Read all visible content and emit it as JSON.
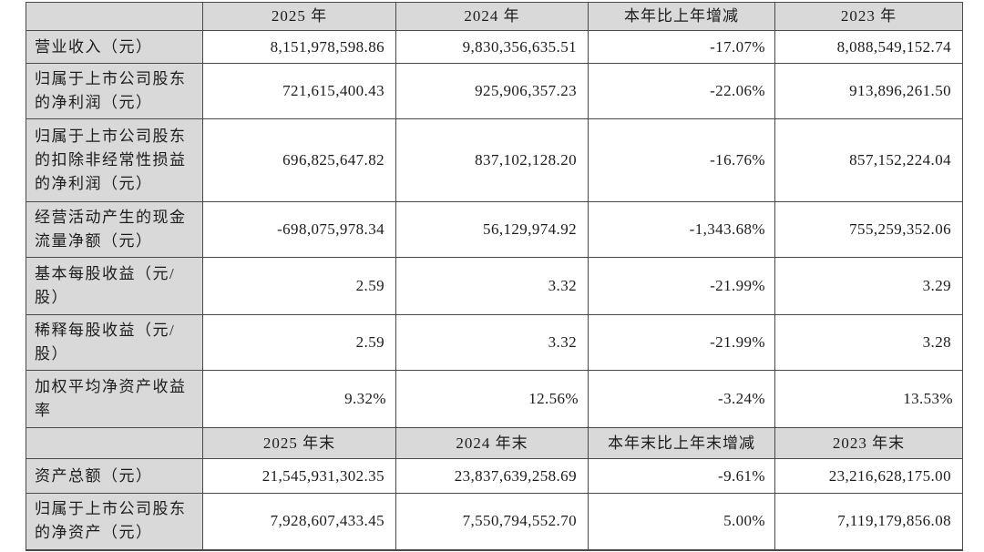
{
  "document": {
    "type": "annual-report-financial-summary-table",
    "colors": {
      "header_background": "#d9d9d9",
      "label_column_background": "#d9d9d9",
      "border": "#4a4a4a",
      "text": "#1c1c1c",
      "page_background": "#ffffff"
    },
    "table": {
      "header_primary": {
        "blank": "",
        "col_2025": "2025 年",
        "col_2024": "2024 年",
        "col_change": "本年比上年增减",
        "col_2023": "2023 年"
      },
      "period_rows": [
        {
          "label": "营业收入（元）",
          "v2025": "8,151,978,598.86",
          "v2024": "9,830,356,635.51",
          "change": "-17.07%",
          "v2023": "8,088,549,152.74"
        },
        {
          "label": "归属于上市公司股东的净利润（元）",
          "v2025": "721,615,400.43",
          "v2024": "925,906,357.23",
          "change": "-22.06%",
          "v2023": "913,896,261.50"
        },
        {
          "label": "归属于上市公司股东的扣除非经常性损益的净利润（元）",
          "v2025": "696,825,647.82",
          "v2024": "837,102,128.20",
          "change": "-16.76%",
          "v2023": "857,152,224.04"
        },
        {
          "label": "经营活动产生的现金流量净额（元）",
          "v2025": "-698,075,978.34",
          "v2024": "56,129,974.92",
          "change": "-1,343.68%",
          "v2023": "755,259,352.06"
        },
        {
          "label": "基本每股收益（元/股）",
          "v2025": "2.59",
          "v2024": "3.32",
          "change": "-21.99%",
          "v2023": "3.29"
        },
        {
          "label": "稀释每股收益（元/股）",
          "v2025": "2.59",
          "v2024": "3.32",
          "change": "-21.99%",
          "v2023": "3.28"
        },
        {
          "label": "加权平均净资产收益率",
          "v2025": "9.32%",
          "v2024": "12.56%",
          "change": "-3.24%",
          "v2023": "13.53%"
        }
      ],
      "header_secondary": {
        "blank": "",
        "col_2025": "2025 年末",
        "col_2024": "2024 年末",
        "col_change": "本年末比上年末增减",
        "col_2023": "2023 年末"
      },
      "point_rows": [
        {
          "label": "资产总额（元）",
          "v2025": "21,545,931,302.35",
          "v2024": "23,837,639,258.69",
          "change": "-9.61%",
          "v2023": "23,216,628,175.00"
        },
        {
          "label": "归属于上市公司股东的净资产（元）",
          "v2025": "7,928,607,433.45",
          "v2024": "7,550,794,552.70",
          "change": "5.00%",
          "v2023": "7,119,179,856.08"
        }
      ]
    }
  }
}
